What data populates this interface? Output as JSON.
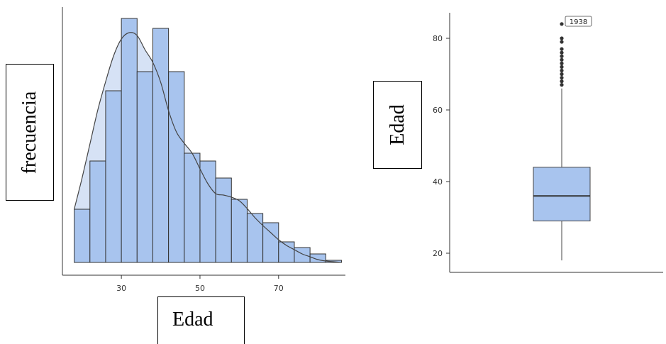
{
  "charts": {
    "histogram": {
      "xlabel": "Edad",
      "ylabel": "frecuencia"
    },
    "boxplot": {
      "ylabel": "Edad",
      "outlier_label": "1938"
    }
  },
  "colors": {
    "bar_fill": "#a8c4ee",
    "bar_fill_light": "#d6e2f5",
    "bar_stroke": "#333333",
    "axis": "#333333",
    "curve": "#444444",
    "box_fill": "#a8c4ee"
  },
  "chart_data": [
    {
      "type": "histogram",
      "title": "",
      "xlabel": "Edad",
      "ylabel": "frecuencia",
      "xlim": [
        15,
        87
      ],
      "xticks": [
        30,
        50,
        70
      ],
      "bin_width": 4,
      "bins": [
        {
          "x0": 18,
          "x1": 22,
          "value": 75
        },
        {
          "x0": 22,
          "x1": 26,
          "value": 143
        },
        {
          "x0": 26,
          "x1": 30,
          "value": 242
        },
        {
          "x0": 30,
          "x1": 34,
          "value": 344
        },
        {
          "x0": 34,
          "x1": 38,
          "value": 269
        },
        {
          "x0": 38,
          "x1": 42,
          "value": 330
        },
        {
          "x0": 42,
          "x1": 46,
          "value": 269
        },
        {
          "x0": 46,
          "x1": 50,
          "value": 154
        },
        {
          "x0": 50,
          "x1": 54,
          "value": 143
        },
        {
          "x0": 54,
          "x1": 58,
          "value": 119
        },
        {
          "x0": 58,
          "x1": 62,
          "value": 89
        },
        {
          "x0": 62,
          "x1": 66,
          "value": 69
        },
        {
          "x0": 66,
          "x1": 70,
          "value": 56
        },
        {
          "x0": 70,
          "x1": 74,
          "value": 29
        },
        {
          "x0": 74,
          "x1": 78,
          "value": 21
        },
        {
          "x0": 78,
          "x1": 82,
          "value": 12
        },
        {
          "x0": 82,
          "x1": 86,
          "value": 3
        }
      ],
      "density_curve": {
        "x": [
          18,
          20,
          22,
          24,
          26,
          28,
          30,
          32,
          34,
          36,
          38,
          40,
          42,
          44,
          46,
          48,
          50,
          52,
          54,
          56,
          58,
          60,
          62,
          64,
          66,
          68,
          70,
          72,
          74,
          76,
          78,
          80,
          82,
          84,
          86
        ],
        "y": [
          75,
          119,
          167,
          215,
          255,
          291,
          315,
          324,
          320,
          300,
          282,
          254,
          214,
          184,
          168,
          154,
          132,
          111,
          97,
          95,
          92,
          87,
          76,
          63,
          52,
          42,
          32,
          24,
          18,
          12,
          8,
          4,
          2,
          1,
          0
        ]
      },
      "grid": false,
      "legend": false
    },
    {
      "type": "box",
      "title": "",
      "xlabel": "",
      "ylabel": "Edad",
      "ylim": [
        15,
        88
      ],
      "yticks": [
        20,
        40,
        60,
        80
      ],
      "q1": 29,
      "median": 36,
      "q3": 44,
      "whisker_low": 18,
      "whisker_high": 66,
      "outliers": [
        67,
        68,
        69,
        70,
        71,
        72,
        73,
        74,
        75,
        76,
        77,
        79,
        80,
        84
      ],
      "labeled_outlier": {
        "value": 84,
        "label": "1938"
      },
      "grid": false,
      "legend": false
    }
  ]
}
